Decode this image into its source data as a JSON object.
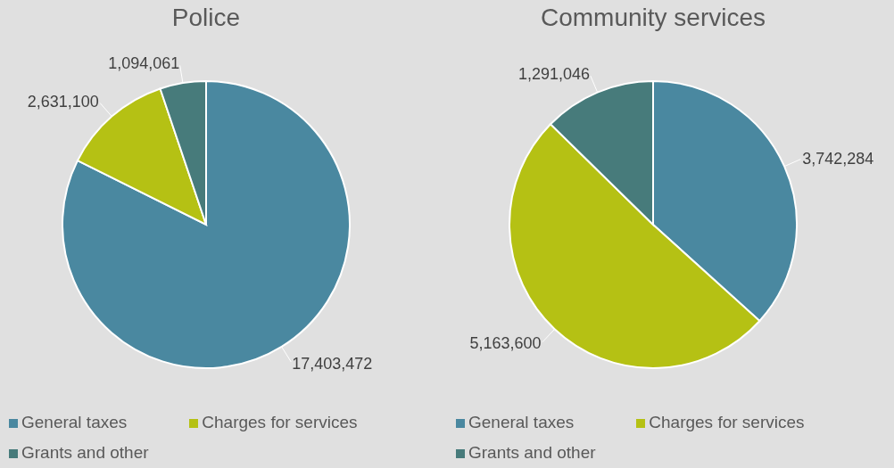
{
  "chart_data": [
    {
      "type": "pie",
      "title": "Police",
      "categories": [
        "General taxes",
        "Charges for services",
        "Grants and other"
      ],
      "values": [
        17403472,
        2631100,
        1094061
      ],
      "value_labels": [
        "17,403,472",
        "2,631,100",
        "1,094,061"
      ],
      "colors": [
        "#4a88a0",
        "#b5c114",
        "#477b7b"
      ],
      "legend": "bottom"
    },
    {
      "type": "pie",
      "title": "Community services",
      "categories": [
        "General taxes",
        "Charges for services",
        "Grants and other"
      ],
      "values": [
        3742284,
        5163600,
        1291046
      ],
      "value_labels": [
        "3,742,284",
        "5,163,600",
        "1,291,046"
      ],
      "colors": [
        "#4a88a0",
        "#b5c114",
        "#477b7b"
      ],
      "legend": "bottom"
    }
  ]
}
